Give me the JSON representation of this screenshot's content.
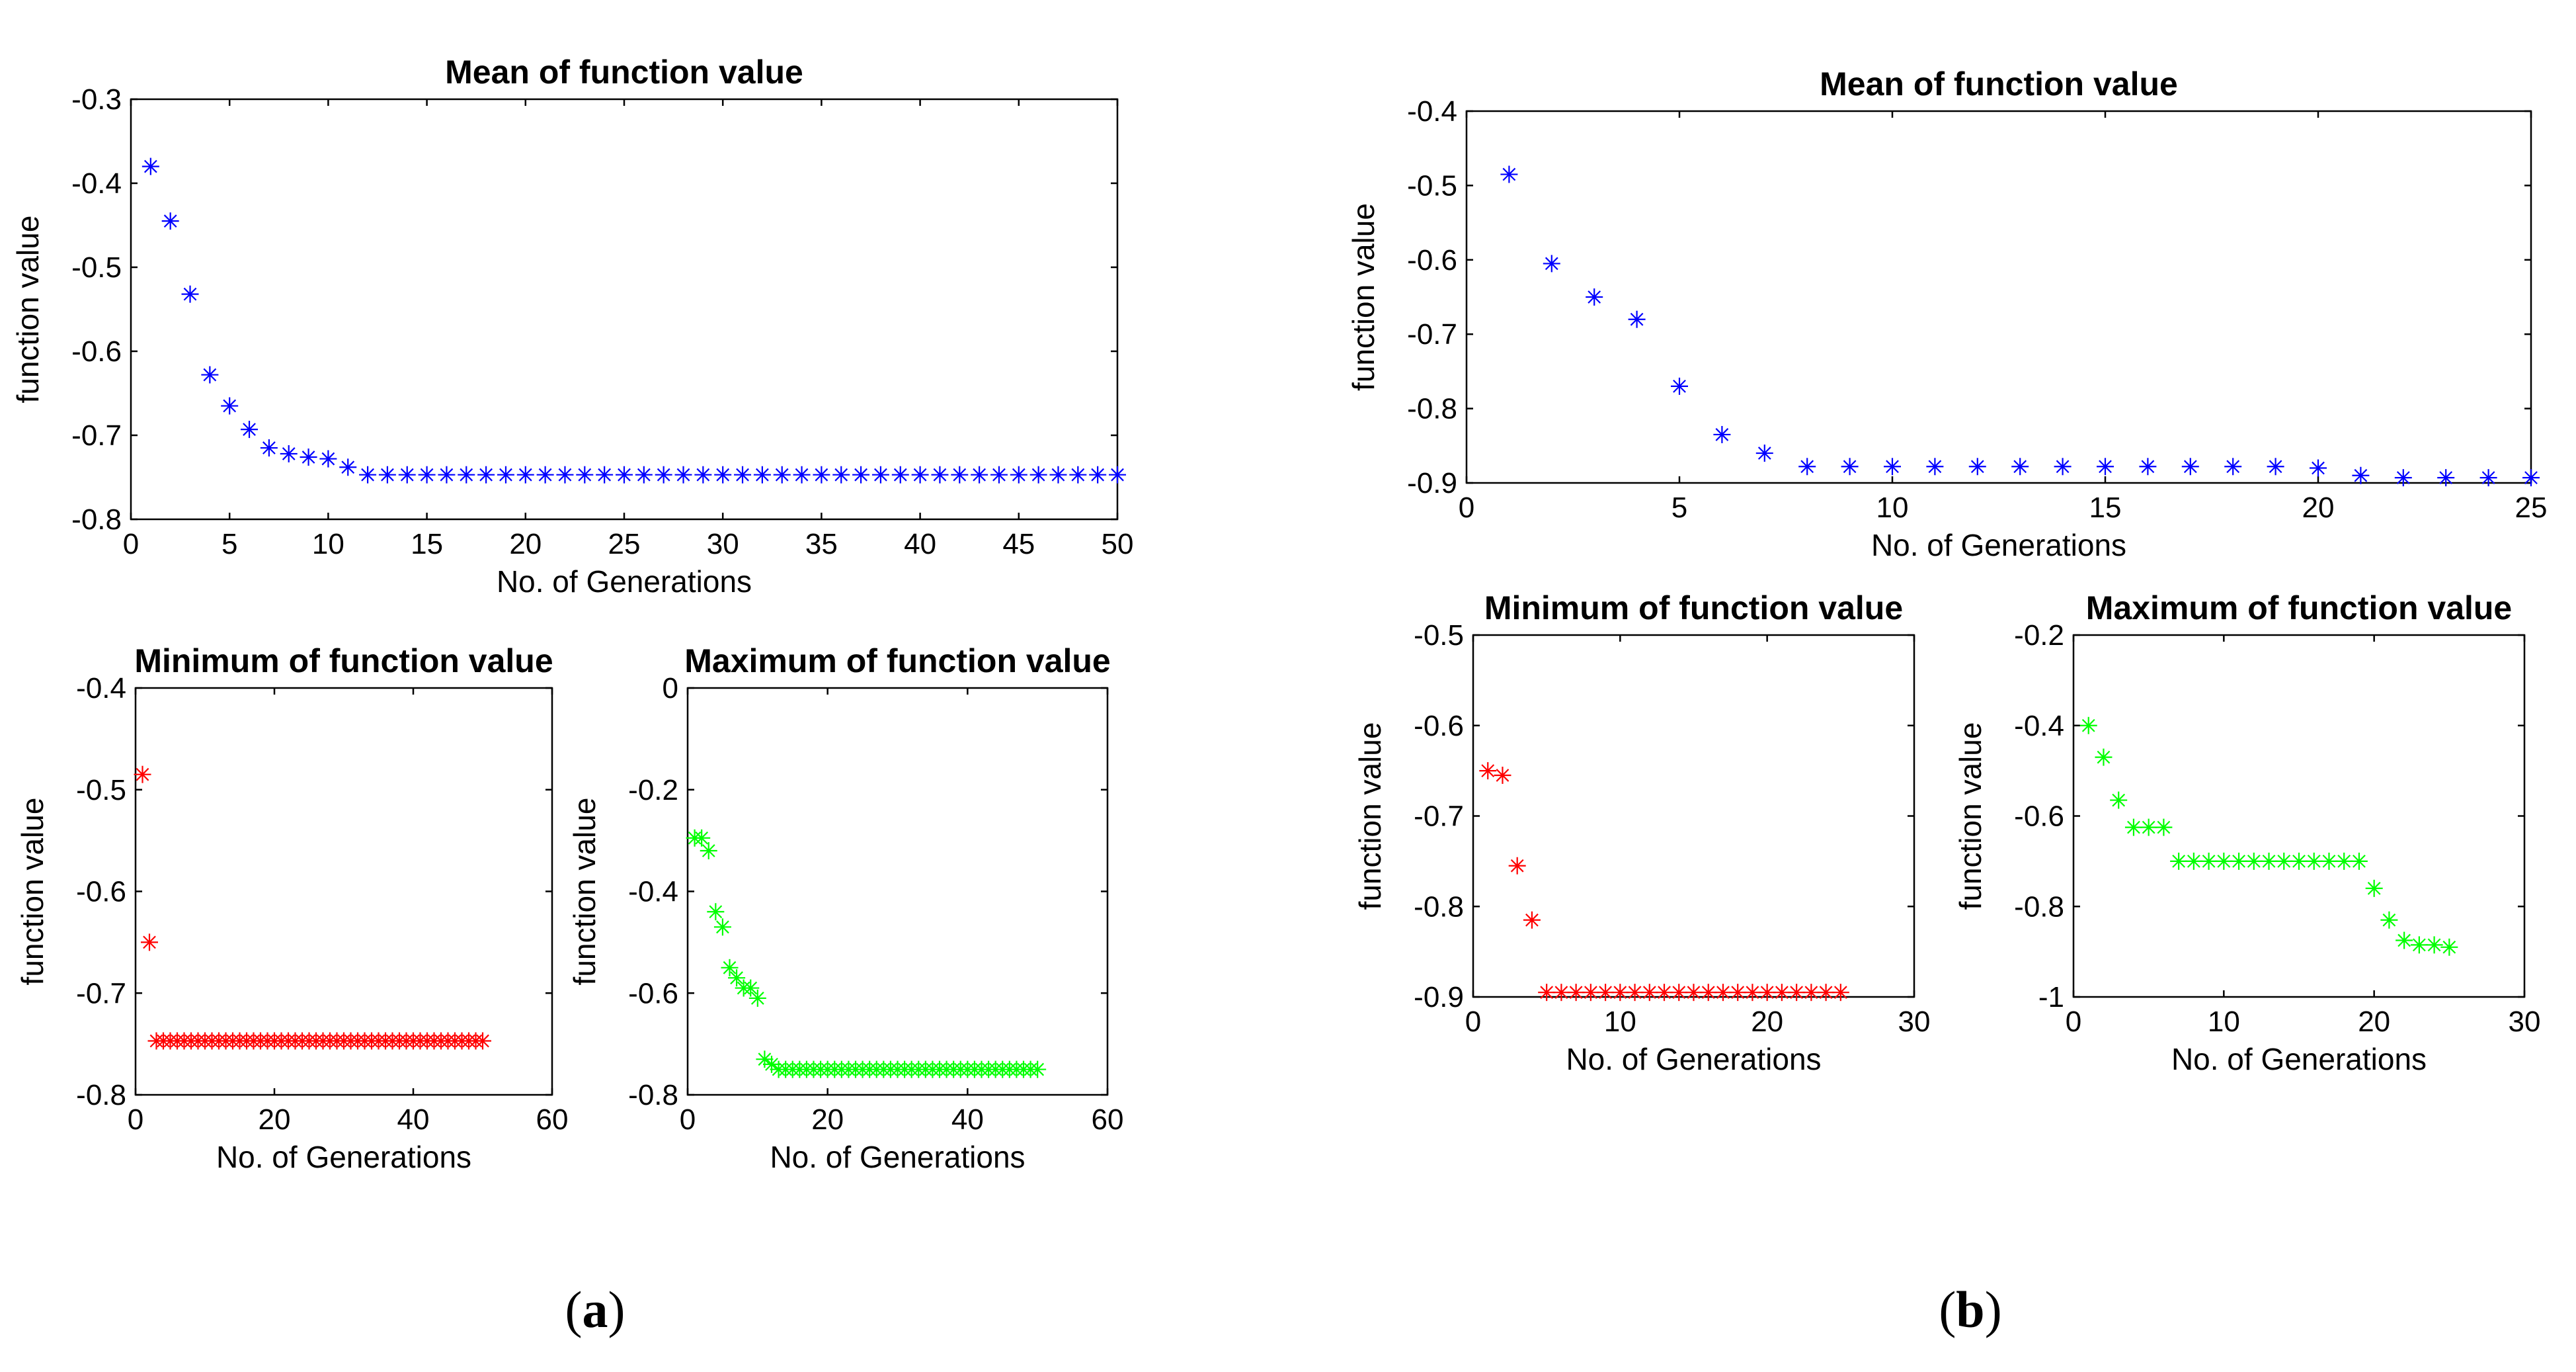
{
  "colors": {
    "mean": "#0000ff",
    "min": "#ff0000",
    "max": "#00ff00",
    "axis": "#000000"
  },
  "panels": [
    {
      "id": "a",
      "label": "a"
    },
    {
      "id": "b",
      "label": "b"
    }
  ],
  "chart_data": [
    {
      "panel": "a",
      "type": "scatter",
      "marker": "asterisk",
      "color": "mean",
      "title": "Mean of function value",
      "xlabel": "No. of Generations",
      "ylabel": "function value",
      "xlim": [
        0,
        50
      ],
      "ylim": [
        -0.8,
        -0.3
      ],
      "xticks": [
        0,
        5,
        10,
        15,
        20,
        25,
        30,
        35,
        40,
        45,
        50
      ],
      "xticklabels": [
        "0",
        "5",
        "10",
        "15",
        "20",
        "25",
        "30",
        "35",
        "40",
        "45",
        "50"
      ],
      "yticks": [
        -0.8,
        -0.7,
        -0.6,
        -0.5,
        -0.4,
        -0.3
      ],
      "yticklabels": [
        "-0.8",
        "-0.7",
        "-0.6",
        "-0.5",
        "-0.4",
        "-0.3"
      ],
      "x": [
        1,
        2,
        3,
        4,
        5,
        6,
        7,
        8,
        9,
        10,
        11,
        12,
        13,
        14,
        15,
        16,
        17,
        18,
        19,
        20,
        21,
        22,
        23,
        24,
        25,
        26,
        27,
        28,
        29,
        30,
        31,
        32,
        33,
        34,
        35,
        36,
        37,
        38,
        39,
        40,
        41,
        42,
        43,
        44,
        45,
        46,
        47,
        48,
        49,
        50
      ],
      "y": [
        -0.38,
        -0.445,
        -0.532,
        -0.628,
        -0.665,
        -0.693,
        -0.715,
        -0.722,
        -0.726,
        -0.728,
        -0.738,
        -0.747,
        -0.747,
        -0.747,
        -0.747,
        -0.747,
        -0.747,
        -0.747,
        -0.747,
        -0.747,
        -0.747,
        -0.747,
        -0.747,
        -0.747,
        -0.747,
        -0.747,
        -0.747,
        -0.747,
        -0.747,
        -0.747,
        -0.747,
        -0.747,
        -0.747,
        -0.747,
        -0.747,
        -0.747,
        -0.747,
        -0.747,
        -0.747,
        -0.747,
        -0.747,
        -0.747,
        -0.747,
        -0.747,
        -0.747,
        -0.747,
        -0.747,
        -0.747,
        -0.747,
        -0.747
      ]
    },
    {
      "panel": "a",
      "type": "scatter",
      "marker": "asterisk",
      "color": "min",
      "title": "Minimum of function value",
      "xlabel": "No. of Generations",
      "ylabel": "function value",
      "xlim": [
        0,
        60
      ],
      "ylim": [
        -0.8,
        -0.4
      ],
      "xticks": [
        0,
        20,
        40,
        60
      ],
      "xticklabels": [
        "0",
        "20",
        "40",
        "60"
      ],
      "yticks": [
        -0.8,
        -0.7,
        -0.6,
        -0.5,
        -0.4
      ],
      "yticklabels": [
        "-0.8",
        "-0.7",
        "-0.6",
        "-0.5",
        "-0.4"
      ],
      "x": [
        1,
        2,
        3,
        4,
        5,
        6,
        7,
        8,
        9,
        10,
        11,
        12,
        13,
        14,
        15,
        16,
        17,
        18,
        19,
        20,
        21,
        22,
        23,
        24,
        25,
        26,
        27,
        28,
        29,
        30,
        31,
        32,
        33,
        34,
        35,
        36,
        37,
        38,
        39,
        40,
        41,
        42,
        43,
        44,
        45,
        46,
        47,
        48,
        49,
        50
      ],
      "y": [
        -0.485,
        -0.65,
        -0.747,
        -0.747,
        -0.747,
        -0.747,
        -0.747,
        -0.747,
        -0.747,
        -0.747,
        -0.747,
        -0.747,
        -0.747,
        -0.747,
        -0.747,
        -0.747,
        -0.747,
        -0.747,
        -0.747,
        -0.747,
        -0.747,
        -0.747,
        -0.747,
        -0.747,
        -0.747,
        -0.747,
        -0.747,
        -0.747,
        -0.747,
        -0.747,
        -0.747,
        -0.747,
        -0.747,
        -0.747,
        -0.747,
        -0.747,
        -0.747,
        -0.747,
        -0.747,
        -0.747,
        -0.747,
        -0.747,
        -0.747,
        -0.747,
        -0.747,
        -0.747,
        -0.747,
        -0.747,
        -0.747,
        -0.747
      ]
    },
    {
      "panel": "a",
      "type": "scatter",
      "marker": "asterisk",
      "color": "max",
      "title": "Maximum of function value",
      "xlabel": "No. of Generations",
      "ylabel": "function value",
      "xlim": [
        0,
        60
      ],
      "ylim": [
        -0.8,
        0
      ],
      "xticks": [
        0,
        20,
        40,
        60
      ],
      "xticklabels": [
        "0",
        "20",
        "40",
        "60"
      ],
      "yticks": [
        -0.8,
        -0.6,
        -0.4,
        -0.2,
        0
      ],
      "yticklabels": [
        "-0.8",
        "-0.6",
        "-0.4",
        "-0.2",
        "0"
      ],
      "x": [
        1,
        2,
        3,
        4,
        5,
        6,
        7,
        8,
        9,
        10,
        11,
        12,
        13,
        14,
        15,
        16,
        17,
        18,
        19,
        20,
        21,
        22,
        23,
        24,
        25,
        26,
        27,
        28,
        29,
        30,
        31,
        32,
        33,
        34,
        35,
        36,
        37,
        38,
        39,
        40,
        41,
        42,
        43,
        44,
        45,
        46,
        47,
        48,
        49,
        50
      ],
      "y": [
        -0.295,
        -0.295,
        -0.32,
        -0.44,
        -0.47,
        -0.55,
        -0.57,
        -0.59,
        -0.59,
        -0.61,
        -0.73,
        -0.74,
        -0.75,
        -0.75,
        -0.75,
        -0.75,
        -0.75,
        -0.75,
        -0.75,
        -0.75,
        -0.75,
        -0.75,
        -0.75,
        -0.75,
        -0.75,
        -0.75,
        -0.75,
        -0.75,
        -0.75,
        -0.75,
        -0.75,
        -0.75,
        -0.75,
        -0.75,
        -0.75,
        -0.75,
        -0.75,
        -0.75,
        -0.75,
        -0.75,
        -0.75,
        -0.75,
        -0.75,
        -0.75,
        -0.75,
        -0.75,
        -0.75,
        -0.75,
        -0.75,
        -0.75
      ]
    },
    {
      "panel": "b",
      "type": "scatter",
      "marker": "asterisk",
      "color": "mean",
      "title": "Mean of function value",
      "xlabel": "No. of Generations",
      "ylabel": "function value",
      "xlim": [
        0,
        25
      ],
      "ylim": [
        -0.9,
        -0.4
      ],
      "xticks": [
        0,
        5,
        10,
        15,
        20,
        25
      ],
      "xticklabels": [
        "0",
        "5",
        "10",
        "15",
        "20",
        "25"
      ],
      "yticks": [
        -0.9,
        -0.8,
        -0.7,
        -0.6,
        -0.5,
        -0.4
      ],
      "yticklabels": [
        "-0.9",
        "-0.8",
        "-0.7",
        "-0.6",
        "-0.5",
        "-0.4"
      ],
      "x": [
        1,
        2,
        3,
        4,
        5,
        6,
        7,
        8,
        9,
        10,
        11,
        12,
        13,
        14,
        15,
        16,
        17,
        18,
        19,
        20,
        21,
        22,
        23,
        24,
        25
      ],
      "y": [
        -0.485,
        -0.605,
        -0.65,
        -0.68,
        -0.77,
        -0.835,
        -0.86,
        -0.878,
        -0.878,
        -0.878,
        -0.878,
        -0.878,
        -0.878,
        -0.878,
        -0.878,
        -0.878,
        -0.878,
        -0.878,
        -0.878,
        -0.88,
        -0.89,
        -0.893,
        -0.893,
        -0.893,
        -0.893
      ]
    },
    {
      "panel": "b",
      "type": "scatter",
      "marker": "asterisk",
      "color": "min",
      "title": "Minimum of function value",
      "xlabel": "No. of Generations",
      "ylabel": "function value",
      "xlim": [
        0,
        30
      ],
      "ylim": [
        -0.9,
        -0.5
      ],
      "xticks": [
        0,
        10,
        20,
        30
      ],
      "xticklabels": [
        "0",
        "10",
        "20",
        "30"
      ],
      "yticks": [
        -0.9,
        -0.8,
        -0.7,
        -0.6,
        -0.5
      ],
      "yticklabels": [
        "-0.9",
        "-0.8",
        "-0.7",
        "-0.6",
        "-0.5"
      ],
      "x": [
        1,
        2,
        3,
        4,
        5,
        6,
        7,
        8,
        9,
        10,
        11,
        12,
        13,
        14,
        15,
        16,
        17,
        18,
        19,
        20,
        21,
        22,
        23,
        24,
        25
      ],
      "y": [
        -0.65,
        -0.655,
        -0.755,
        -0.815,
        -0.895,
        -0.895,
        -0.895,
        -0.895,
        -0.895,
        -0.895,
        -0.895,
        -0.895,
        -0.895,
        -0.895,
        -0.895,
        -0.895,
        -0.895,
        -0.895,
        -0.895,
        -0.895,
        -0.895,
        -0.895,
        -0.895,
        -0.895,
        -0.895
      ]
    },
    {
      "panel": "b",
      "type": "scatter",
      "marker": "asterisk",
      "color": "max",
      "title": "Maximum of function value",
      "xlabel": "No. of Generations",
      "ylabel": "function value",
      "xlim": [
        0,
        30
      ],
      "ylim": [
        -1,
        -0.2
      ],
      "xticks": [
        0,
        10,
        20,
        30
      ],
      "xticklabels": [
        "0",
        "10",
        "20",
        "30"
      ],
      "yticks": [
        -1,
        -0.8,
        -0.6,
        -0.4,
        -0.2
      ],
      "yticklabels": [
        "-1",
        "-0.8",
        "-0.6",
        "-0.4",
        "-0.2"
      ],
      "x": [
        1,
        2,
        3,
        4,
        5,
        6,
        7,
        8,
        9,
        10,
        11,
        12,
        13,
        14,
        15,
        16,
        17,
        18,
        19,
        20,
        21,
        22,
        23,
        24,
        25
      ],
      "y": [
        -0.4,
        -0.47,
        -0.565,
        -0.625,
        -0.625,
        -0.625,
        -0.7,
        -0.7,
        -0.7,
        -0.7,
        -0.7,
        -0.7,
        -0.7,
        -0.7,
        -0.7,
        -0.7,
        -0.7,
        -0.7,
        -0.7,
        -0.76,
        -0.83,
        -0.875,
        -0.885,
        -0.885,
        -0.89
      ]
    }
  ]
}
